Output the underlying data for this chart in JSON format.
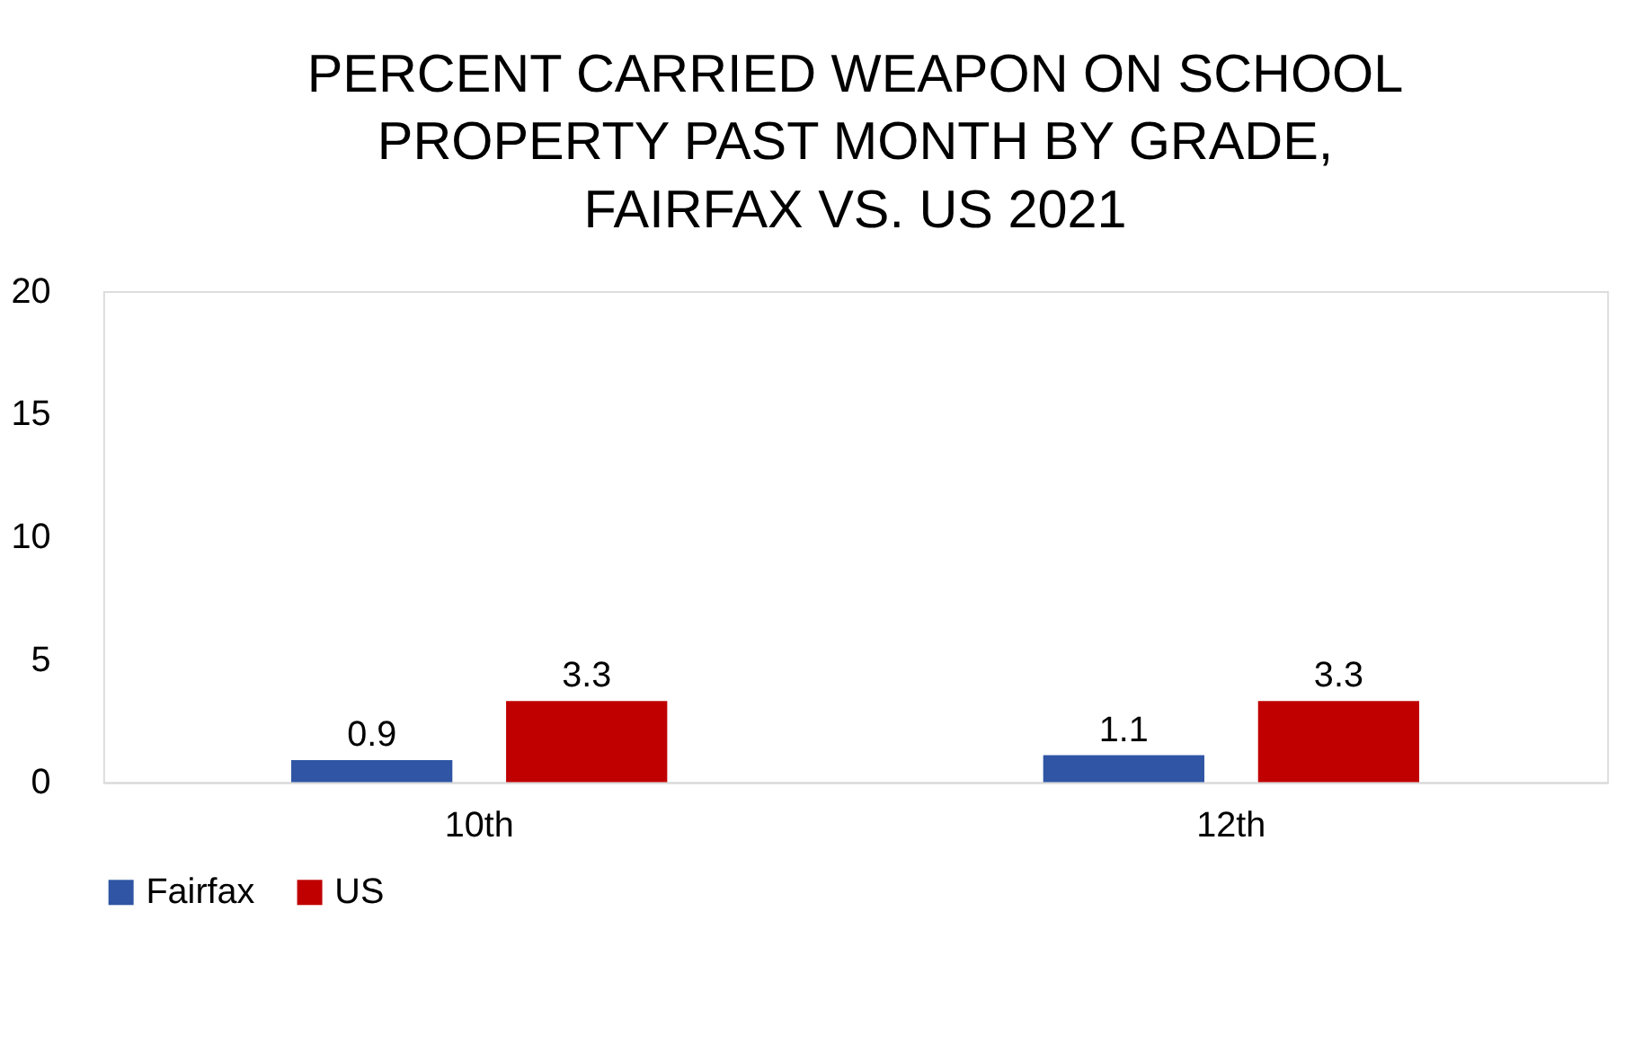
{
  "chart_data": {
    "type": "bar",
    "title": "PERCENT CARRIED WEAPON ON SCHOOL PROPERTY PAST MONTH BY GRADE, FAIRFAX VS. US 2021",
    "categories": [
      "10th",
      "12th"
    ],
    "series": [
      {
        "name": "Fairfax",
        "color": "#2f55a4",
        "values": [
          0.9,
          1.1
        ]
      },
      {
        "name": "US",
        "color": "#c00000",
        "values": [
          3.3,
          3.3
        ]
      }
    ],
    "ylim": [
      0,
      20
    ],
    "yticks": [
      0,
      5,
      10,
      15,
      20
    ],
    "grid": false,
    "legend": "bottom",
    "data_labels": true
  }
}
